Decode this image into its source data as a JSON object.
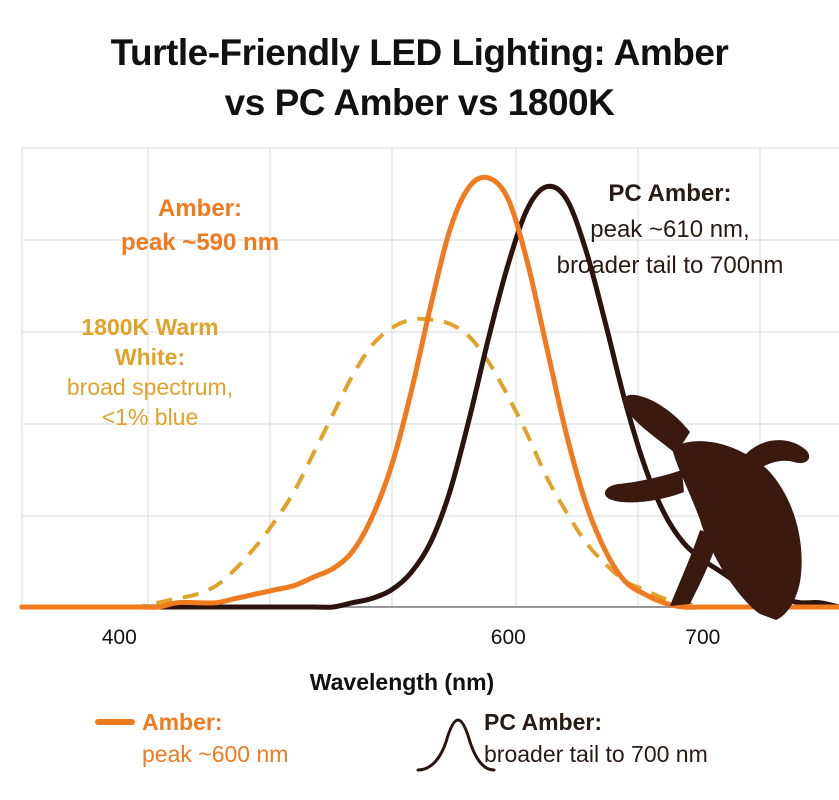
{
  "title": {
    "line1": "Turtle-Friendly LED Lighting: Amber",
    "line2": "vs PC Amber vs 1800K"
  },
  "colors": {
    "amber": "#F07A1E",
    "pc_amber": "#2B1410",
    "warm_white": "#E1A22A",
    "grid": "#D9D9D9",
    "turtle": "#3A1A0F"
  },
  "icons": {
    "turtle": "sea-turtle-silhouette",
    "legend_pc_amber": "bell-curve-symbol"
  },
  "chart_data": {
    "type": "line",
    "x": [
      350,
      360,
      370,
      380,
      390,
      400,
      410,
      420,
      430,
      440,
      450,
      460,
      470,
      480,
      490,
      500,
      510,
      520,
      530,
      540,
      550,
      560,
      570,
      580,
      590,
      600,
      610,
      620,
      630,
      640,
      650,
      660,
      670,
      680,
      690,
      700,
      710,
      720,
      730,
      740,
      750,
      760,
      770
    ],
    "series": [
      {
        "name": "Amber",
        "style": "solid",
        "color": "#F07A1E",
        "values": [
          0.0,
          0.0,
          0.0,
          0.0,
          0.0,
          0.0,
          0.0,
          0.0,
          0.01,
          0.01,
          0.01,
          0.02,
          0.03,
          0.04,
          0.05,
          0.07,
          0.09,
          0.13,
          0.21,
          0.33,
          0.5,
          0.7,
          0.88,
          0.98,
          1.0,
          0.95,
          0.8,
          0.6,
          0.4,
          0.24,
          0.13,
          0.06,
          0.03,
          0.01,
          0.0,
          0.0,
          0.0,
          0.0,
          0.0,
          0.0,
          0.0,
          0.0,
          0.0
        ]
      },
      {
        "name": "PC Amber",
        "style": "solid",
        "color": "#2B1410",
        "values": [
          0.0,
          0.0,
          0.0,
          0.0,
          0.0,
          0.0,
          0.0,
          0.0,
          0.0,
          0.0,
          0.0,
          0.0,
          0.0,
          0.0,
          0.0,
          0.0,
          0.0,
          0.01,
          0.02,
          0.04,
          0.08,
          0.15,
          0.27,
          0.44,
          0.63,
          0.8,
          0.93,
          0.98,
          0.95,
          0.83,
          0.66,
          0.48,
          0.33,
          0.22,
          0.15,
          0.11,
          0.08,
          0.05,
          0.03,
          0.02,
          0.01,
          0.01,
          0.0
        ]
      },
      {
        "name": "1800K Warm White",
        "style": "dashed",
        "color": "#E1A22A",
        "values": [
          0.0,
          0.0,
          0.0,
          0.0,
          0.0,
          0.0,
          0.0,
          0.01,
          0.02,
          0.03,
          0.05,
          0.09,
          0.14,
          0.2,
          0.27,
          0.36,
          0.45,
          0.54,
          0.61,
          0.65,
          0.67,
          0.67,
          0.66,
          0.63,
          0.57,
          0.49,
          0.4,
          0.3,
          0.22,
          0.15,
          0.1,
          0.06,
          0.04,
          0.02,
          0.01,
          0.0,
          0.0,
          0.0,
          0.0,
          0.0,
          0.0,
          0.0,
          0.0
        ]
      }
    ],
    "xlabel": "Wavelength (nm)",
    "ylabel": "",
    "xticks": [
      400,
      600,
      700
    ],
    "xlim": [
      350,
      770
    ],
    "ylim": [
      0,
      1.0
    ],
    "grid": true,
    "annotations": {
      "amber": [
        "Amber:",
        "peak ~590 nm"
      ],
      "pc_amber": [
        "PC Amber:",
        "peak ~610 nm,",
        "broader tail to 700nm"
      ],
      "warm_white": [
        "1800K Warm",
        "White:",
        "broad spectrum,",
        "<1% blue"
      ]
    },
    "legend": {
      "position": "bottom",
      "amber": [
        "Amber:",
        "peak ~600 nm"
      ],
      "pc_amber": [
        "PC Amber:",
        "broader tail to 700 nm"
      ]
    }
  }
}
